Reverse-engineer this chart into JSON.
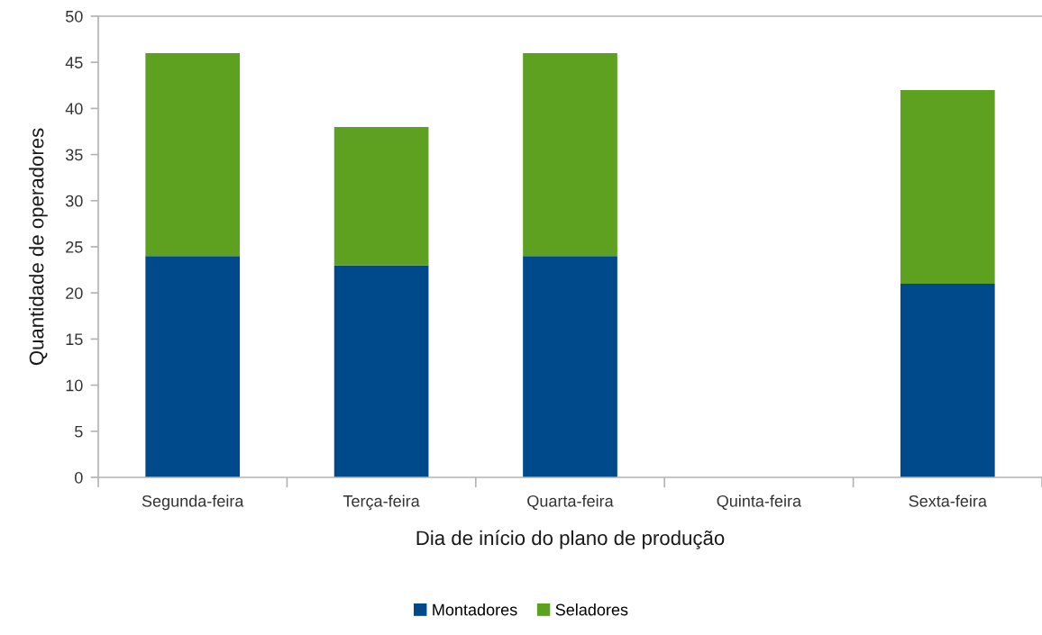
{
  "chart_data": {
    "type": "bar",
    "stacked": true,
    "xlabel": "Dia de início do plano de produção",
    "ylabel": "Quantidade de operadores",
    "categories": [
      "Segunda-feira",
      "Terça-feira",
      "Quarta-feira",
      "Quinta-feira",
      "Sexta-feira"
    ],
    "series": [
      {
        "name": "Montadores",
        "color": "#004a8c",
        "values": [
          24,
          23,
          24,
          null,
          21
        ]
      },
      {
        "name": "Seladores",
        "color": "#5ea121",
        "values": [
          22,
          15,
          22,
          null,
          21
        ]
      }
    ],
    "ylim": [
      0,
      50
    ],
    "yticks": [
      0,
      5,
      10,
      15,
      20,
      25,
      30,
      35,
      40,
      45,
      50
    ],
    "grid": false,
    "legend": "bottom"
  }
}
